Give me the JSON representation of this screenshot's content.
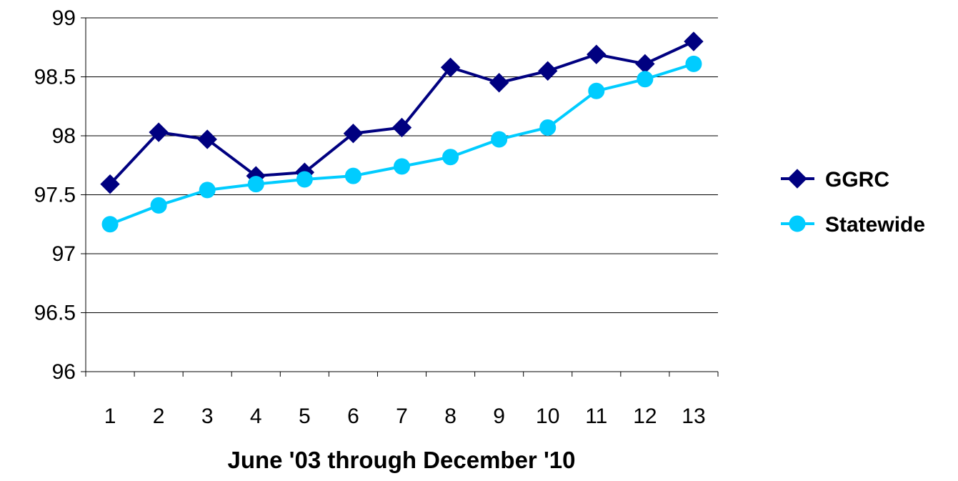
{
  "chart_data": {
    "type": "line",
    "title": "",
    "xlabel": "June '03 through December '10",
    "ylabel": "",
    "categories": [
      "1",
      "2",
      "3",
      "4",
      "5",
      "6",
      "7",
      "8",
      "9",
      "10",
      "11",
      "12",
      "13"
    ],
    "ylim": [
      96,
      99
    ],
    "yticks": [
      "96",
      "96.5",
      "97",
      "97.5",
      "98",
      "98.5",
      "99"
    ],
    "grid": true,
    "legend_position": "right",
    "series": [
      {
        "name": "GGRC",
        "color": "#000080",
        "marker": "diamond",
        "values": [
          97.59,
          98.03,
          97.97,
          97.66,
          97.69,
          98.02,
          98.07,
          98.58,
          98.45,
          98.55,
          98.69,
          98.61,
          98.8
        ]
      },
      {
        "name": "Statewide",
        "color": "#00CCFF",
        "marker": "circle",
        "values": [
          97.25,
          97.41,
          97.54,
          97.59,
          97.63,
          97.66,
          97.74,
          97.82,
          97.97,
          98.07,
          98.38,
          98.48,
          98.61
        ]
      }
    ]
  }
}
